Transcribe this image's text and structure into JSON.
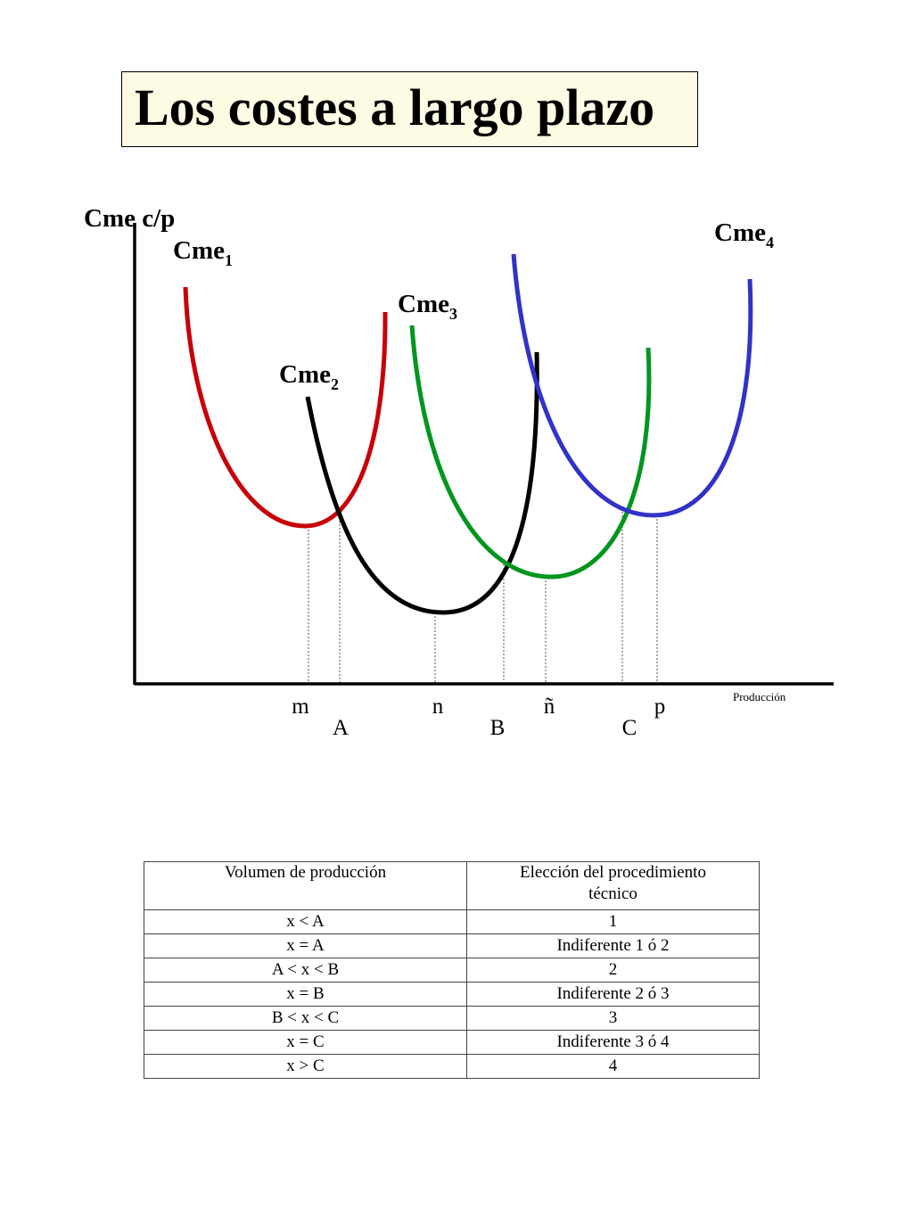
{
  "title": "Los costes a largo plazo",
  "chart": {
    "y_axis_label": "Cme c/p",
    "x_axis_label": "Producción",
    "curves": [
      {
        "base": "Cme",
        "sub": "1",
        "color": "#c8000a"
      },
      {
        "base": "Cme",
        "sub": "2",
        "color": "#000000"
      },
      {
        "base": "Cme",
        "sub": "3",
        "color": "#00961e"
      },
      {
        "base": "Cme",
        "sub": "4",
        "color": "#3232c8"
      }
    ],
    "x_markers_top": [
      "m",
      "n",
      "ñ",
      "p"
    ],
    "x_markers_bottom": [
      "A",
      "B",
      "C"
    ]
  },
  "table": {
    "headers": [
      "Volumen de producción",
      "Elección del procedimiento técnico"
    ],
    "rows": [
      [
        "x < A",
        "1"
      ],
      [
        "x = A",
        "Indiferente 1 ó 2"
      ],
      [
        "A < x < B",
        "2"
      ],
      [
        "x = B",
        "Indiferente 2 ó 3"
      ],
      [
        "B < x < C",
        "3"
      ],
      [
        "x = C",
        "Indiferente 3 ó 4"
      ],
      [
        "x > C",
        "4"
      ]
    ]
  }
}
